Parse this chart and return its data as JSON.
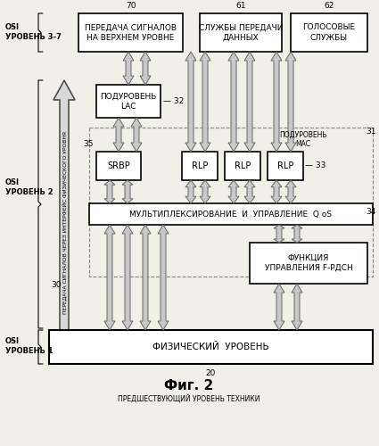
{
  "bg_color": "#f0efe8",
  "box_color": "#ffffff",
  "box_edge": "#000000",
  "dashed_edge": "#888888",
  "arrow_color": "#c8c8c8",
  "arrow_edge": "#666666",
  "text_color": "#000000",
  "title": "Фиг. 2",
  "subtitle": "ПРЕДШЕСТВУЮЩИЙ УРОВЕНЬ ТЕХНИКИ",
  "label_70": "70",
  "label_61": "61",
  "label_62": "62",
  "label_20": "20",
  "label_30": "30",
  "label_31": "31",
  "label_32": "— 32",
  "label_33": "— 33",
  "label_34": "34",
  "label_35": "35",
  "box_top_left": "ПЕРЕДАЧА СИГНАЛОВ\nНА ВЕРХНЕМ УРОВНЕ",
  "box_top_mid": "СЛУЖБЫ ПЕРЕДАЧИ\nДАННЫХ",
  "box_top_right": "ГОЛОСОВЫЕ\nСЛУЖБЫ",
  "box_lac": "ПОДУРОВЕНЬ\nLAC",
  "box_srbp": "SRBP",
  "box_rlp1": "RLP",
  "box_rlp2": "RLP",
  "box_rlp3": "RLP",
  "box_mux": "МУЛЬТИПЛЕКСИРОВАНИЕ  И  УПРАВЛЕНИЕ  Q oS",
  "box_func": "ФУНКЦИЯ\nУПРАВЛЕНИЯ F-РДСН",
  "box_phys": "ФИЗИЧЕСКИЙ  УРОВЕНЬ",
  "label_osi_37": "OSI\nУРОВЕНЬ 3-7",
  "label_osi_2": "OSI\nУРОВЕНЬ 2",
  "label_osi_1": "OSI\nУРОВЕНЬ 1",
  "label_mac": "ПОДУРОВЕНЬ\nMAC",
  "label_vertical": "ПЕРЕДАЧА СИГНАЛОВ ЧЕРЕЗ ИНТЕРФЕЙС ФИЗИЧЕСКОГО УРОВНЯ"
}
